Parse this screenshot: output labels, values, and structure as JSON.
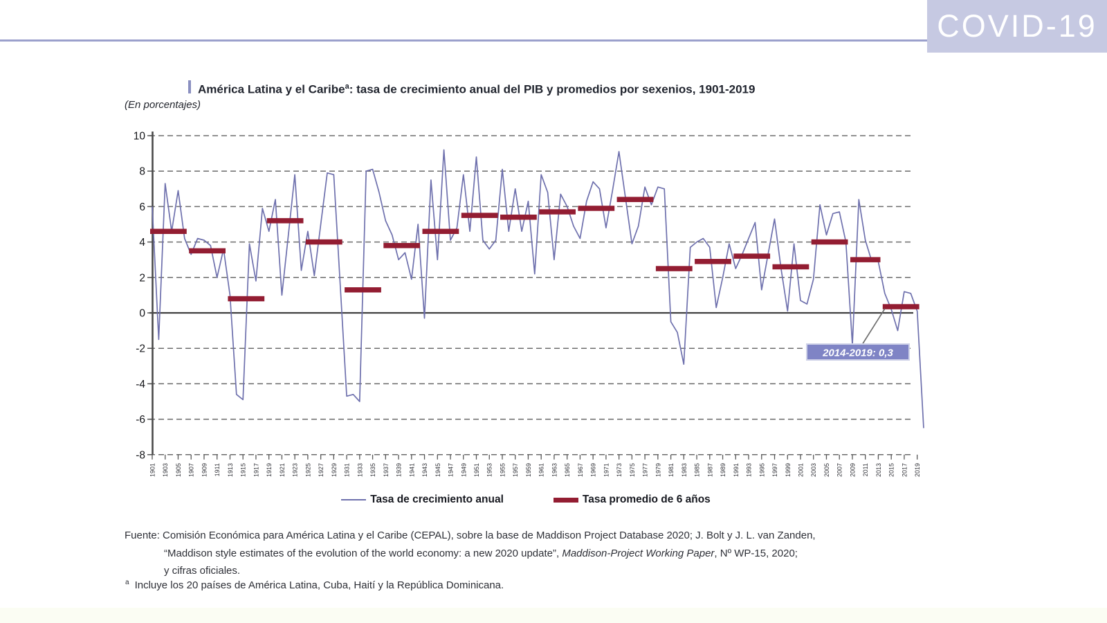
{
  "banner": {
    "label": "COVID-19",
    "bg": "#c6c9e2",
    "rule_color": "#9ba0cc"
  },
  "figure": {
    "title_main": "América Latina y el Caribe",
    "title_sup": "a",
    "title_rest": ": tasa de crecimiento anual del PIB y promedios por sexenios, 1901-2019",
    "subtitle": "(En porcentajes)"
  },
  "chart_data": {
    "type": "line",
    "title": "América Latina y el Caribe: tasa de crecimiento anual del PIB y promedios por sexenios, 1901-2019",
    "xlabel": "",
    "ylabel": "",
    "ylim": [
      -8,
      10
    ],
    "yticks": [
      10,
      8,
      6,
      4,
      2,
      0,
      -2,
      -4,
      -6,
      -8
    ],
    "grid": "dashed horizontal, solid zero line",
    "legend_position": "bottom center",
    "x_start": 1901,
    "x_end": 2020,
    "x_tick_labels": [
      "1901",
      "1903",
      "1905",
      "1907",
      "1909",
      "1911",
      "1913",
      "1915",
      "1917",
      "1919",
      "1921",
      "1923",
      "1925",
      "1927",
      "1929",
      "1931",
      "1933",
      "1935",
      "1937",
      "1939",
      "1941",
      "1943",
      "1945",
      "1947",
      "1949",
      "1951",
      "1953",
      "1955",
      "1957",
      "1959",
      "1961",
      "1963",
      "1965",
      "1967",
      "1969",
      "1971",
      "1973",
      "1975",
      "1977",
      "1979",
      "1981",
      "1983",
      "1985",
      "1987",
      "1989",
      "1991",
      "1993",
      "1995",
      "1997",
      "1999",
      "2001",
      "2003",
      "2005",
      "2007",
      "2009",
      "2011",
      "2013",
      "2015",
      "2017",
      "2019"
    ],
    "series": [
      {
        "name": "Tasa de crecimiento anual",
        "type": "line",
        "color": "#6e70ad",
        "x_first_year": 1901,
        "values": [
          6.0,
          -1.5,
          7.3,
          4.6,
          6.9,
          4.2,
          3.3,
          4.2,
          4.1,
          3.8,
          2.0,
          3.6,
          1.0,
          -4.6,
          -4.9,
          3.9,
          1.8,
          5.9,
          4.6,
          6.4,
          1.0,
          4.4,
          7.8,
          2.4,
          4.6,
          2.1,
          5.0,
          7.9,
          7.8,
          1.6,
          -4.7,
          -4.6,
          -5.0,
          8.0,
          8.1,
          6.8,
          5.2,
          4.4,
          3.0,
          3.4,
          1.9,
          5.0,
          -0.3,
          7.5,
          3.0,
          9.2,
          4.1,
          4.8,
          7.8,
          4.6,
          8.8,
          4.1,
          3.6,
          4.1,
          8.1,
          4.6,
          7.0,
          4.6,
          6.3,
          2.2,
          7.8,
          6.8,
          3.0,
          6.7,
          6.0,
          4.9,
          4.2,
          6.3,
          7.4,
          7.0,
          4.8,
          6.9,
          9.1,
          6.5,
          3.9,
          4.9,
          7.1,
          6.1,
          7.1,
          7.0,
          -0.5,
          -1.1,
          -2.9,
          3.7,
          4.0,
          4.2,
          3.7,
          0.3,
          2.0,
          3.9,
          2.5,
          3.3,
          4.2,
          5.1,
          1.3,
          3.3,
          5.3,
          2.5,
          0.1,
          3.9,
          0.7,
          0.5,
          1.9,
          6.1,
          4.4,
          5.6,
          5.7,
          4.0,
          -1.8,
          6.4,
          4.1,
          2.9,
          2.9,
          1.1,
          0.2,
          -1.0,
          1.2,
          1.1,
          0.1,
          -6.5
        ]
      },
      {
        "name": "Tasa promedio de 6 años",
        "type": "segment-averages",
        "color": "#931d32",
        "segments": [
          {
            "start": 1901,
            "end": 1906,
            "value": 4.6
          },
          {
            "start": 1907,
            "end": 1912,
            "value": 3.5
          },
          {
            "start": 1913,
            "end": 1918,
            "value": 0.8
          },
          {
            "start": 1919,
            "end": 1924,
            "value": 5.2
          },
          {
            "start": 1925,
            "end": 1930,
            "value": 4.0
          },
          {
            "start": 1931,
            "end": 1936,
            "value": 1.3
          },
          {
            "start": 1937,
            "end": 1942,
            "value": 3.8
          },
          {
            "start": 1943,
            "end": 1948,
            "value": 4.6
          },
          {
            "start": 1949,
            "end": 1954,
            "value": 5.5
          },
          {
            "start": 1955,
            "end": 1960,
            "value": 5.4
          },
          {
            "start": 1961,
            "end": 1966,
            "value": 5.7
          },
          {
            "start": 1967,
            "end": 1972,
            "value": 5.9
          },
          {
            "start": 1973,
            "end": 1978,
            "value": 6.4
          },
          {
            "start": 1979,
            "end": 1984,
            "value": 2.5
          },
          {
            "start": 1985,
            "end": 1990,
            "value": 2.9
          },
          {
            "start": 1991,
            "end": 1996,
            "value": 3.2
          },
          {
            "start": 1997,
            "end": 2002,
            "value": 2.6
          },
          {
            "start": 2003,
            "end": 2008,
            "value": 4.0
          },
          {
            "start": 2009,
            "end": 2013,
            "value": 3.0
          },
          {
            "start": 2014,
            "end": 2019,
            "value": 0.35
          }
        ]
      }
    ],
    "annotation": {
      "label": "2014-2019: 0,3",
      "bg": "#7f84c5",
      "text_color": "#ffffff"
    }
  },
  "legend": {
    "items": [
      {
        "label": "Tasa de crecimiento anual",
        "swatch": "line",
        "color": "#6e70ad"
      },
      {
        "label": "Tasa promedio de 6 años",
        "swatch": "bar",
        "color": "#931d32"
      }
    ]
  },
  "source": {
    "line1": "Fuente: Comisión Económica para América Latina y el Caribe (CEPAL), sobre la base de Maddison Project Database 2020; J. Bolt y J. L. van Zanden,",
    "line2_pre": "“Maddison style estimates of the evolution of the world economy: a new 2020 update”, ",
    "line2_italic": "Maddison-Project Working Paper",
    "line2_post": ", Nº WP-15, 2020;",
    "line3": "y cifras oficiales.",
    "footnote_marker": "a",
    "footnote_text": "Incluye los 20 países de América Latina, Cuba, Haití y la República Dominicana."
  }
}
